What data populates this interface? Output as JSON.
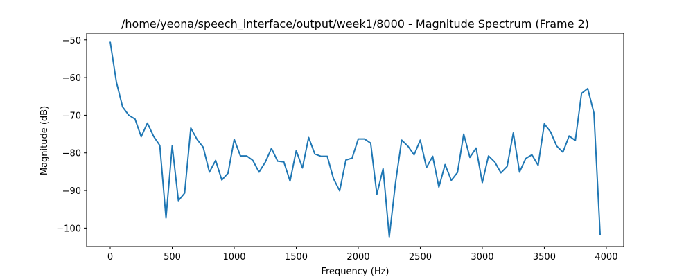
{
  "chart_data": {
    "type": "line",
    "title": "/home/yeona/speech_interface/output/week1/8000 - Magnitude Spectrum (Frame 2)",
    "xlabel": "Frequency (Hz)",
    "ylabel": "Magnitude (dB)",
    "xlim": [
      -190,
      4140
    ],
    "ylim": [
      -104.9,
      -48.2
    ],
    "xticks": [
      0,
      500,
      1000,
      1500,
      2000,
      2500,
      3000,
      3500,
      4000
    ],
    "xtick_labels": [
      "0",
      "500",
      "1000",
      "1500",
      "2000",
      "2500",
      "3000",
      "3500",
      "4000"
    ],
    "yticks": [
      -50,
      -60,
      -70,
      -80,
      -90,
      -100
    ],
    "ytick_labels": [
      "−50",
      "−60",
      "−70",
      "−80",
      "−90",
      "−100"
    ],
    "grid": false,
    "series": [
      {
        "color": "#1f77b4",
        "x": [
          0,
          50,
          100,
          150,
          200,
          250,
          300,
          350,
          400,
          450,
          500,
          550,
          600,
          650,
          700,
          750,
          800,
          850,
          900,
          950,
          1000,
          1050,
          1100,
          1150,
          1200,
          1250,
          1300,
          1350,
          1400,
          1450,
          1500,
          1550,
          1600,
          1650,
          1700,
          1750,
          1800,
          1850,
          1900,
          1950,
          2000,
          2050,
          2100,
          2150,
          2200,
          2250,
          2300,
          2350,
          2400,
          2450,
          2500,
          2550,
          2600,
          2650,
          2700,
          2750,
          2800,
          2850,
          2900,
          2950,
          3000,
          3050,
          3100,
          3150,
          3200,
          3250,
          3300,
          3350,
          3400,
          3450,
          3500,
          3550,
          3600,
          3650,
          3700,
          3750,
          3800,
          3850,
          3900,
          3950
        ],
        "y": [
          -50.5,
          -61.2,
          -67.8,
          -70.0,
          -71.0,
          -75.7,
          -72.1,
          -75.6,
          -78.0,
          -97.3,
          -78.1,
          -92.7,
          -90.7,
          -73.4,
          -76.4,
          -78.5,
          -85.1,
          -82.0,
          -87.2,
          -85.4,
          -76.4,
          -80.8,
          -80.8,
          -82.0,
          -85.1,
          -82.5,
          -78.8,
          -82.2,
          -82.4,
          -87.5,
          -79.4,
          -84.0,
          -75.9,
          -80.3,
          -80.9,
          -80.9,
          -86.8,
          -90.1,
          -81.9,
          -81.4,
          -76.3,
          -76.3,
          -77.4,
          -91.0,
          -84.2,
          -102.3,
          -88.0,
          -76.6,
          -78.2,
          -80.5,
          -76.6,
          -83.9,
          -80.9,
          -89.1,
          -83.1,
          -87.3,
          -85.2,
          -75.0,
          -81.2,
          -78.7,
          -87.9,
          -80.8,
          -82.4,
          -85.3,
          -83.6,
          -74.7,
          -85.1,
          -81.5,
          -80.5,
          -83.3,
          -72.3,
          -74.4,
          -78.2,
          -79.8,
          -75.5,
          -76.7,
          -64.2,
          -62.9,
          -69.4,
          -101.6
        ]
      }
    ]
  }
}
